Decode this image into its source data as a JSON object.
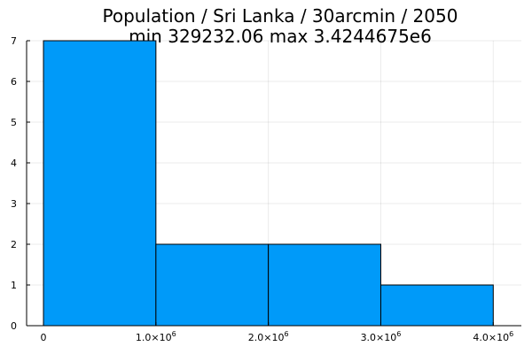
{
  "chart_data": {
    "type": "bar",
    "title": "Population / Sri Lanka / 30arcmin / 2050",
    "subtitle": "min 329232.06  max 3.4244675e6",
    "xlabel": "",
    "ylabel": "",
    "bin_edges": [
      0,
      1000000,
      2000000,
      3000000,
      4000000
    ],
    "values": [
      7,
      2,
      2,
      1
    ],
    "xlim": [
      -150000,
      4250000
    ],
    "ylim": [
      0,
      7
    ],
    "x_ticks": [
      {
        "value": 0,
        "mantissa": "0",
        "exp": ""
      },
      {
        "value": 1000000,
        "mantissa": "1.0×10",
        "exp": "6"
      },
      {
        "value": 2000000,
        "mantissa": "2.0×10",
        "exp": "6"
      },
      {
        "value": 3000000,
        "mantissa": "3.0×10",
        "exp": "6"
      },
      {
        "value": 4000000,
        "mantissa": "4.0×10",
        "exp": "6"
      }
    ],
    "y_ticks": [
      0,
      1,
      2,
      3,
      4,
      5,
      6,
      7
    ],
    "grid": true,
    "legend": "none",
    "bar_color": "#009AF9"
  }
}
